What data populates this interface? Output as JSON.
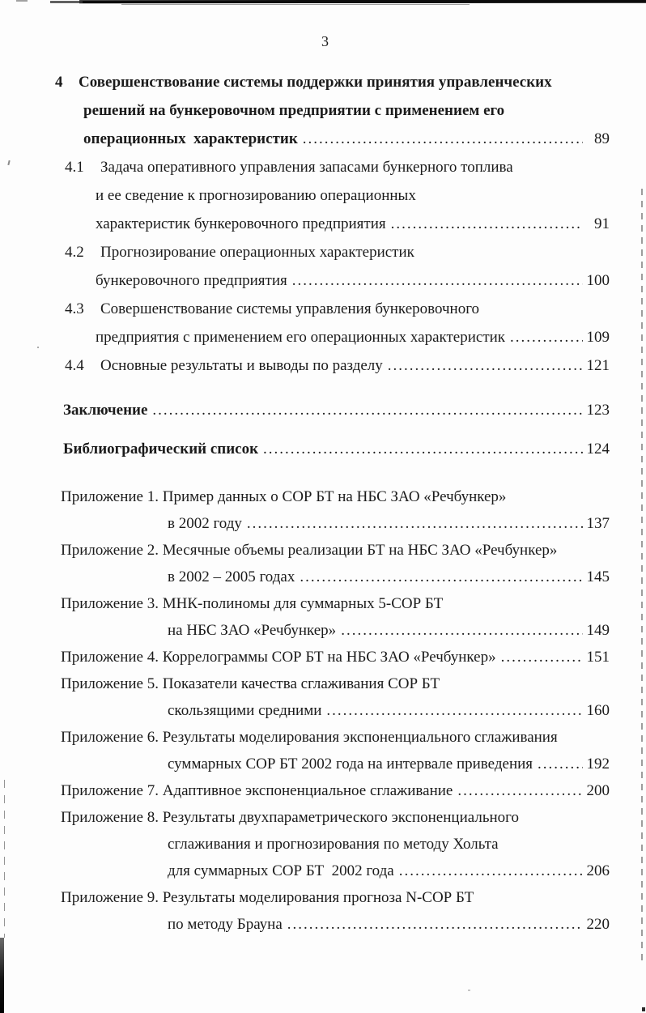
{
  "page_number": "3",
  "colors": {
    "ink": "#1b1b1b",
    "paper": "#fdfdfd"
  },
  "toc": {
    "entries": [
      {
        "type": "chapter",
        "number": "4",
        "lines": [
          "Совершенствование системы поддержки принятия управленческих",
          "решений на бункеровочном предприятии с применением его",
          "операционных  характеристик"
        ],
        "page": "89"
      },
      {
        "type": "sub",
        "number": "4.1",
        "lines": [
          "Задача оперативного управления запасами бункерного топлива",
          "и ее сведение к прогнозированию операционных",
          "характеристик бункеровочного предприятия"
        ],
        "page": "91"
      },
      {
        "type": "sub",
        "number": "4.2",
        "lines": [
          "Прогнозирование операционных характеристик",
          "бункеровочного предприятия"
        ],
        "page": "100"
      },
      {
        "type": "sub",
        "number": "4.3",
        "lines": [
          "Совершенствование системы управления бункеровочного",
          "предприятия с применением его операционных характеристик"
        ],
        "page": "109"
      },
      {
        "type": "sub",
        "number": "4.4",
        "lines": [
          "Основные результаты и выводы по разделу"
        ],
        "page": "121"
      },
      {
        "type": "solo",
        "lines": [
          "Заключение"
        ],
        "page": "123"
      },
      {
        "type": "solo",
        "lines": [
          "Библиографический список"
        ],
        "page": "124"
      },
      {
        "type": "appendix",
        "label": "Приложение 1.",
        "lines": [
          "Пример данных о СОР БТ на НБС ЗАО «Речбункер»",
          "в 2002 году"
        ],
        "page": "137"
      },
      {
        "type": "appendix",
        "label": "Приложение 2.",
        "lines": [
          "Месячные объемы реализации БТ на НБС ЗАО «Речбункер»",
          "в 2002 – 2005 годах"
        ],
        "page": "145"
      },
      {
        "type": "appendix",
        "label": "Приложение 3.",
        "lines": [
          "МНК-полиномы для суммарных 5-СОР БТ",
          "на НБС ЗАО «Речбункер»"
        ],
        "page": "149"
      },
      {
        "type": "appendix",
        "label": "Приложение 4.",
        "lines": [
          "Коррелограммы СОР БТ на НБС ЗАО «Речбункер»"
        ],
        "page": "151"
      },
      {
        "type": "appendix",
        "label": "Приложение 5.",
        "lines": [
          "Показатели качества сглаживания СОР БТ",
          "скользящими средними"
        ],
        "page": "160"
      },
      {
        "type": "appendix",
        "label": "Приложение 6.",
        "lines": [
          "Результаты моделирования экспоненциального сглаживания",
          "суммарных СОР БТ 2002 года на интервале приведения"
        ],
        "page": "192"
      },
      {
        "type": "appendix",
        "label": "Приложение 7.",
        "lines": [
          "Адаптивное экспоненциальное сглаживание"
        ],
        "page": "200"
      },
      {
        "type": "appendix",
        "label": "Приложение 8.",
        "lines": [
          "Результаты двухпараметрического экспоненциального",
          "сглаживания и прогнозирования по методу Хольта",
          "для суммарных СОР БТ  2002 года"
        ],
        "page": "206"
      },
      {
        "type": "appendix",
        "label": "Приложение 9.",
        "lines": [
          "Результаты моделирования прогноза N-СОР БТ",
          "по методу Брауна"
        ],
        "page": "220"
      }
    ]
  }
}
